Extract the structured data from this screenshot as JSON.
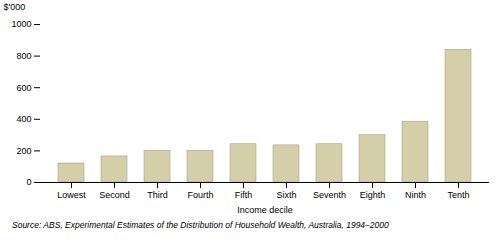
{
  "chart_data": {
    "type": "bar",
    "categories": [
      "Lowest",
      "Second",
      "Third",
      "Fourth",
      "Fifth",
      "Sixth",
      "Seventh",
      "Eighth",
      "Ninth",
      "Tenth"
    ],
    "values": [
      120,
      165,
      200,
      200,
      242,
      235,
      242,
      300,
      385,
      840
    ],
    "color": "#d4cfa8",
    "xlabel": "Income decile",
    "ylabel": "$'000",
    "ylim": [
      0,
      1000
    ],
    "yticks": [
      0,
      200,
      400,
      600,
      800,
      1000
    ],
    "grid": false,
    "annotations": [
      "Source: ABS, Experimental Estimates of the Distribution of Household Wealth, Australia, 1994–2000"
    ]
  }
}
